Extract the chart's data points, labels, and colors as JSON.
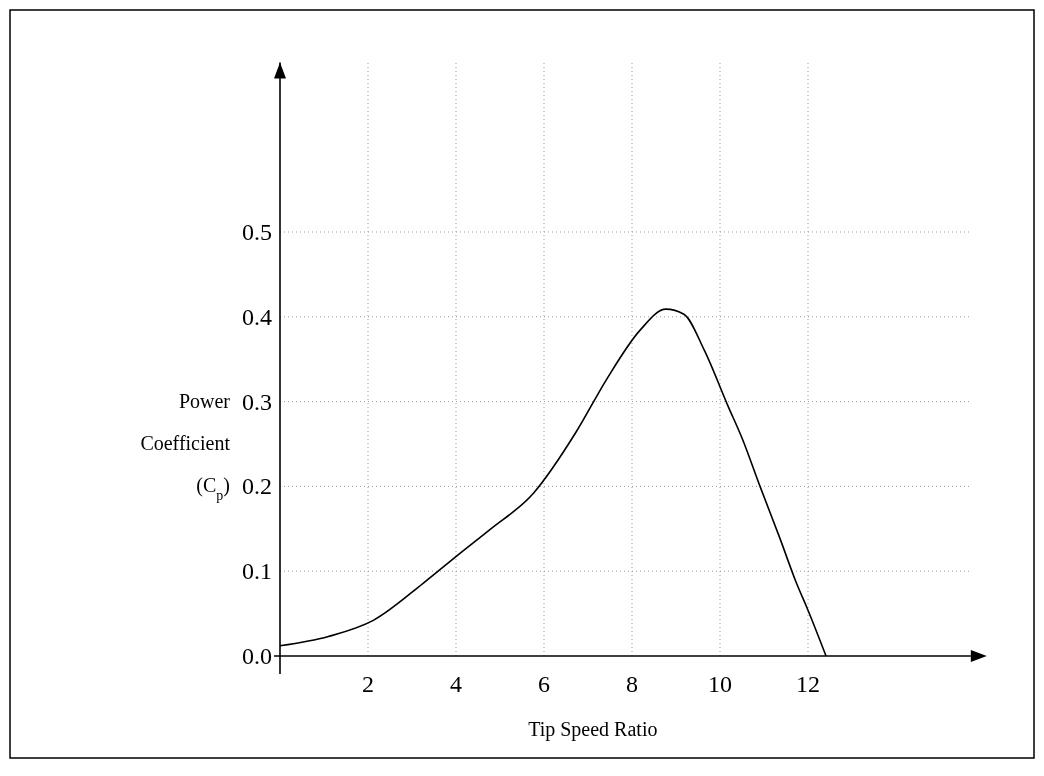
{
  "chart_data": {
    "type": "line",
    "xlabel": "Tip Speed Ratio",
    "ylabel": "Power Coefficient (C$_{p}$)",
    "xlim": [
      0,
      15.7
    ],
    "ylim": [
      0,
      0.7
    ],
    "xticks": [
      2,
      4,
      6,
      8,
      10,
      12
    ],
    "yticks": [
      {
        "value": 0,
        "label": "0.0"
      },
      0.1,
      0.2,
      0.3,
      0.4,
      0.5
    ],
    "grid": true,
    "marker": "none",
    "line_style": "solid",
    "series": [
      {
        "color": "#000000",
        "x": [
          0,
          1.1,
          2.12,
          3.26,
          4.09,
          4.77,
          5.76,
          6.74,
          7.42,
          8.18,
          8.77,
          9.18,
          9.64,
          10.18,
          10.5,
          10.91,
          11.36,
          11.73,
          12.0,
          12.41
        ],
        "values": [
          0.012,
          0.023,
          0.042,
          0.086,
          0.121,
          0.149,
          0.192,
          0.265,
          0.326,
          0.384,
          0.409,
          0.403,
          0.361,
          0.295,
          0.257,
          0.2,
          0.139,
          0.087,
          0.054,
          0
        ]
      }
    ]
  }
}
